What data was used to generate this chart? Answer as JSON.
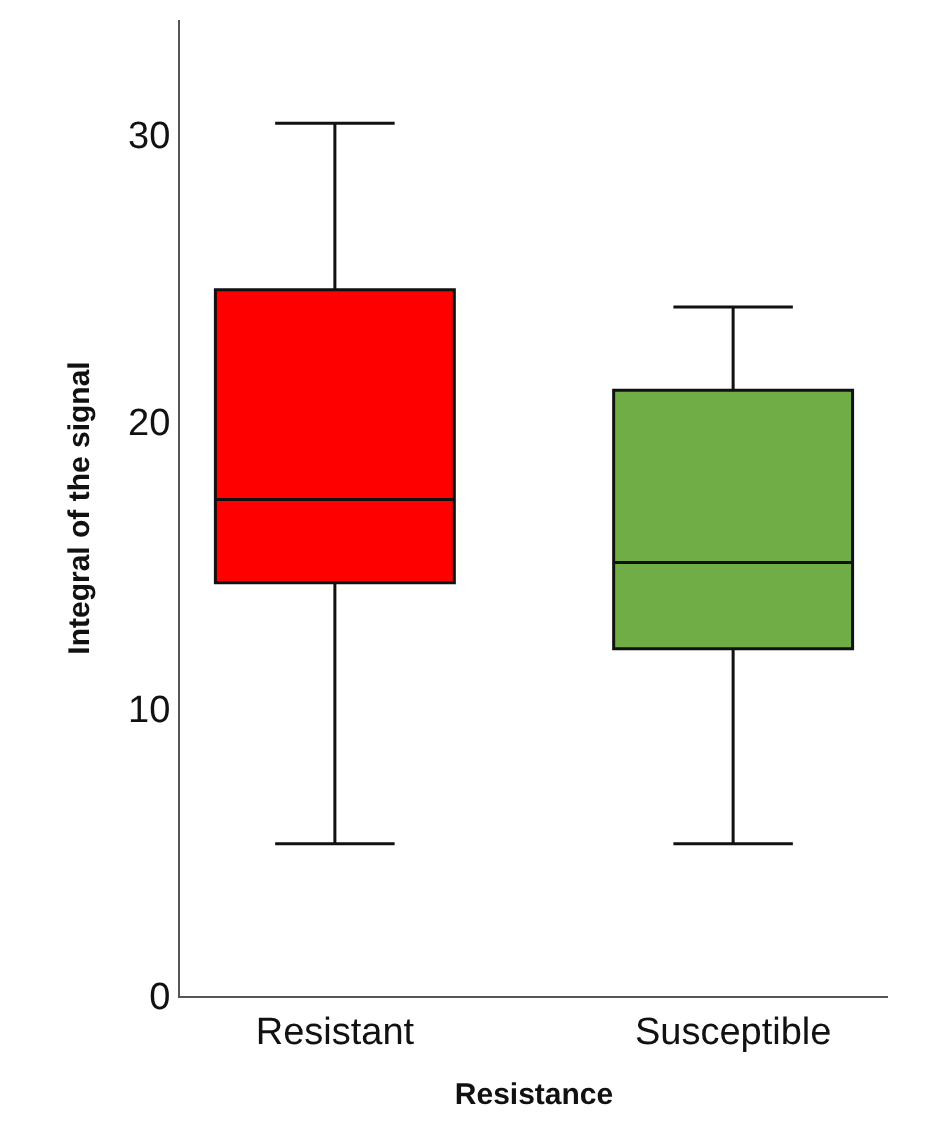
{
  "chart_data": {
    "type": "box",
    "xlabel": "Resistance",
    "ylabel": "Integral of the signal",
    "categories": [
      "Resistant",
      "Susceptible"
    ],
    "ylim": [
      0,
      34
    ],
    "yticks": [
      0,
      10,
      20,
      30
    ],
    "legend": false,
    "colors": [
      "#ff0000",
      "#70ad47"
    ],
    "boxes": [
      {
        "low": 5.3,
        "q1": 14.4,
        "median": 17.3,
        "q3": 24.6,
        "high": 30.4
      },
      {
        "low": 5.3,
        "q1": 12.1,
        "median": 15.1,
        "q3": 21.1,
        "high": 24.0
      }
    ]
  }
}
